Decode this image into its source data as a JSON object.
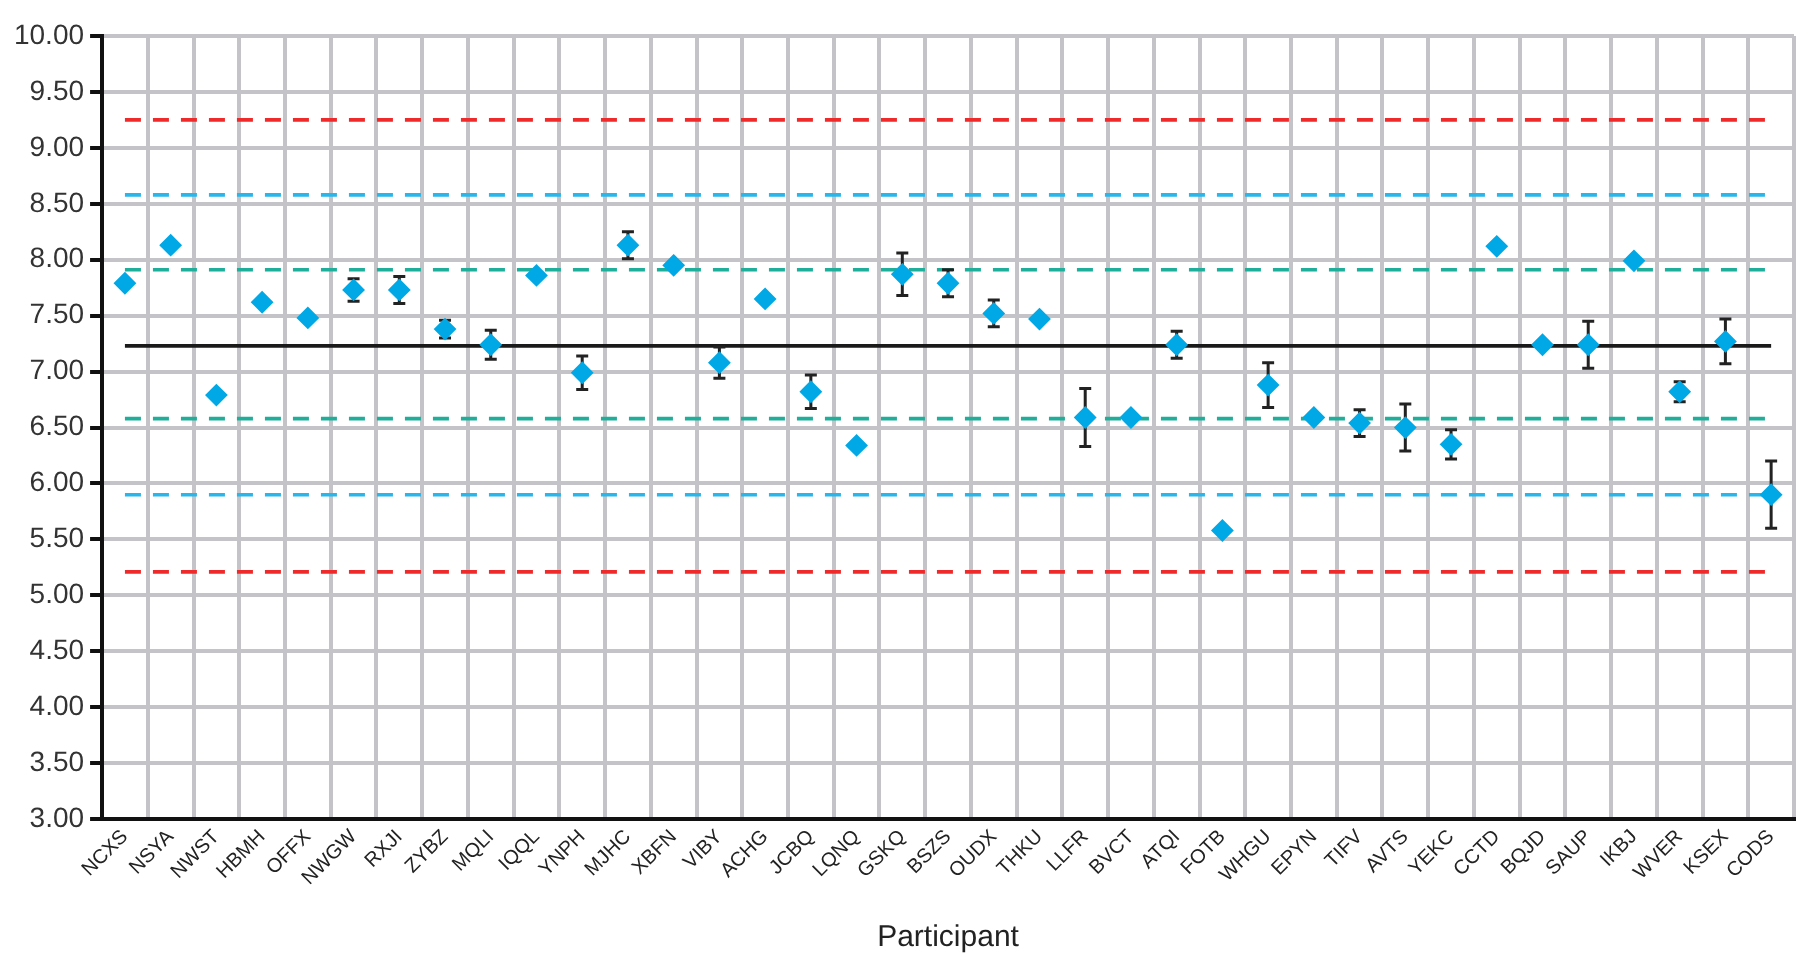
{
  "chart_data": {
    "type": "scatter",
    "xlabel": "Participant",
    "categories": [
      "NCXS",
      "NSYA",
      "NWST",
      "HBMH",
      "OFFX",
      "NWGW",
      "RXJI",
      "ZYBZ",
      "MQLI",
      "IQQL",
      "YNPH",
      "MJHC",
      "XBFN",
      "VIBY",
      "ACHG",
      "JCBQ",
      "LQNQ",
      "GSKQ",
      "BSZS",
      "OUDX",
      "THKU",
      "LLFR",
      "BVCT",
      "ATQI",
      "FOTB",
      "WHGU",
      "EPYN",
      "TIFV",
      "AVTS",
      "YEKC",
      "CCTD",
      "BQJD",
      "SAUP",
      "IKBJ",
      "WVER",
      "KSEX",
      "CODS"
    ],
    "values": [
      7.79,
      8.13,
      6.79,
      7.62,
      7.48,
      7.73,
      7.73,
      7.38,
      7.24,
      7.86,
      6.99,
      8.13,
      7.95,
      7.08,
      7.65,
      6.82,
      6.34,
      7.87,
      7.79,
      7.52,
      7.47,
      6.59,
      6.59,
      7.24,
      5.58,
      6.88,
      6.59,
      6.54,
      6.5,
      6.35,
      8.12,
      7.24,
      7.24,
      7.99,
      6.82,
      7.27,
      5.9
    ],
    "errors": [
      null,
      null,
      null,
      null,
      null,
      0.1,
      0.12,
      0.08,
      0.13,
      null,
      0.15,
      0.12,
      null,
      0.14,
      null,
      0.15,
      null,
      0.19,
      0.12,
      0.12,
      null,
      0.26,
      null,
      0.12,
      null,
      0.2,
      null,
      0.12,
      0.21,
      0.13,
      null,
      null,
      0.21,
      null,
      0.09,
      0.2,
      0.3
    ],
    "color": "#00a9e6",
    "marker": "diamond",
    "ylim": [
      3,
      10
    ],
    "yticks": [
      {
        "value": 3,
        "label": "3.00"
      },
      {
        "value": 3.5,
        "label": "3.50"
      },
      {
        "value": 4,
        "label": "4.00"
      },
      {
        "value": 4.5,
        "label": "4.50"
      },
      {
        "value": 5,
        "label": "5.00"
      },
      {
        "value": 5.5,
        "label": "5.50"
      },
      {
        "value": 6,
        "label": "6.00"
      },
      {
        "value": 6.5,
        "label": "6.50"
      },
      {
        "value": 7,
        "label": "7.00"
      },
      {
        "value": 7.5,
        "label": "7.50"
      },
      {
        "value": 8,
        "label": "8.00"
      },
      {
        "value": 8.5,
        "label": "8.50"
      },
      {
        "value": 9,
        "label": "9.00"
      },
      {
        "value": 9.5,
        "label": "9.50"
      },
      {
        "value": 10,
        "label": "10.00"
      }
    ],
    "grid": true,
    "legend": false,
    "ref_lines": [
      {
        "axis": "y",
        "value": 9.25,
        "color": "#ee2a2a",
        "line_style": "dashed"
      },
      {
        "axis": "y",
        "value": 8.58,
        "color": "#29b6ea",
        "line_style": "dashed"
      },
      {
        "axis": "y",
        "value": 7.91,
        "color": "#1fae9a",
        "line_style": "dashed"
      },
      {
        "axis": "y",
        "value": 7.23,
        "color": "#1a1a1a",
        "line_style": "solid"
      },
      {
        "axis": "y",
        "value": 6.58,
        "color": "#1fae9a",
        "line_style": "dashed"
      },
      {
        "axis": "y",
        "value": 5.9,
        "color": "#29b6ea",
        "line_style": "dashed"
      },
      {
        "axis": "y",
        "value": 5.21,
        "color": "#ee2a2a",
        "line_style": "dashed"
      }
    ]
  }
}
